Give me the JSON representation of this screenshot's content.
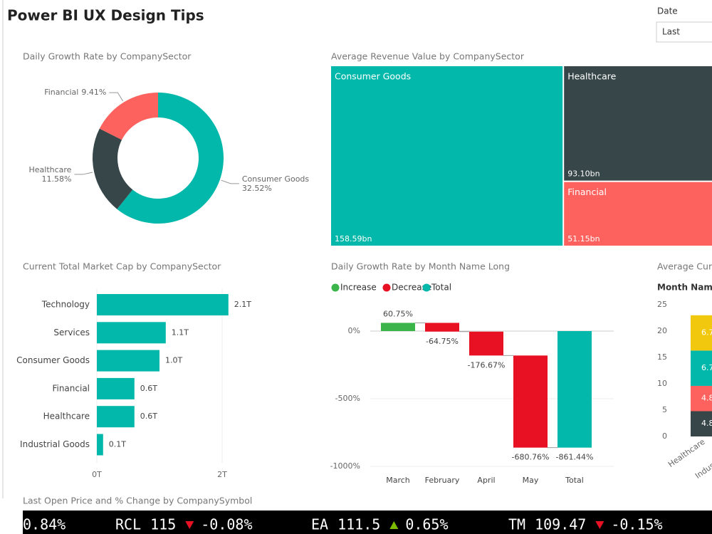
{
  "header": {
    "title": "Power BI UX Design Tips"
  },
  "slicer": {
    "label": "Date",
    "value": "Last"
  },
  "chart_data": [
    {
      "type": "pie",
      "title": "Daily Growth Rate by CompanySector",
      "hole": true,
      "categories": [
        "Consumer Goods",
        "Healthcare",
        "Financial"
      ],
      "values": [
        32.52,
        11.58,
        9.41
      ],
      "value_labels": [
        "32.52%",
        "11.58%",
        "9.41%"
      ],
      "colors": [
        "#01b8aa",
        "#374649",
        "#fd625e"
      ]
    },
    {
      "type": "treemap",
      "title": "Average Revenue Value by CompanySector",
      "categories": [
        "Consumer Goods",
        "Healthcare",
        "Financial"
      ],
      "values": [
        158.59,
        93.1,
        51.15
      ],
      "value_labels": [
        "158.59bn",
        "93.10bn",
        "51.15bn"
      ],
      "colors": [
        "#01b8aa",
        "#374649",
        "#fd625e"
      ]
    },
    {
      "type": "bar",
      "orientation": "horizontal",
      "title": "Current Total Market Cap by CompanySector",
      "categories": [
        "Technology",
        "Services",
        "Consumer Goods",
        "Financial",
        "Healthcare",
        "Industrial Goods"
      ],
      "values": [
        2.1,
        1.1,
        1.0,
        0.6,
        0.6,
        0.1
      ],
      "value_labels": [
        "2.1T",
        "1.1T",
        "1.0T",
        "0.6T",
        "0.6T",
        "0.1T"
      ],
      "color": "#01b8aa",
      "xlim": [
        0,
        2.5
      ],
      "xticks": [
        {
          "value": 0,
          "label": "0T"
        },
        {
          "value": 2,
          "label": "2T"
        }
      ],
      "grid": true
    },
    {
      "type": "waterfall",
      "title": "Daily Growth Rate by Month Name Long",
      "legend": [
        {
          "name": "Increase",
          "color": "#3bb44a"
        },
        {
          "name": "Decrease",
          "color": "#e81123"
        },
        {
          "name": "Total",
          "color": "#01b8aa"
        }
      ],
      "categories": [
        "March",
        "February",
        "April",
        "May",
        "Total"
      ],
      "values": [
        60.75,
        -64.75,
        -176.67,
        -680.76,
        -861.44
      ],
      "value_labels": [
        "60.75%",
        "-64.75%",
        "-176.67%",
        "-680.76%",
        "-861.44%"
      ],
      "ylim": [
        -1000,
        100
      ],
      "yticks": [
        {
          "value": 0,
          "label": "0%"
        },
        {
          "value": -500,
          "label": "-500%"
        },
        {
          "value": -1000,
          "label": "-1000%"
        }
      ],
      "grid": true
    },
    {
      "type": "bar",
      "stacked": true,
      "title": "Average Curr",
      "legend_title": "Month Name L",
      "categories": [
        "Healthcare",
        "Indus"
      ],
      "series": [
        {
          "color": "#374649",
          "values": [
            4.8,
            null
          ]
        },
        {
          "color": "#fd625e",
          "values": [
            4.8,
            null
          ]
        },
        {
          "color": "#01b8aa",
          "values": [
            6.7,
            null
          ]
        },
        {
          "color": "#f2c80f",
          "values": [
            6.7,
            null
          ]
        }
      ],
      "ylim": [
        0,
        25
      ],
      "yticks": [
        0,
        5,
        10,
        15,
        20,
        25
      ]
    }
  ],
  "ticker": {
    "title": "Last Open Price and % Change by CompanySymbol",
    "items": [
      {
        "change": "0.84%"
      },
      {
        "symbol": "RCL",
        "price": "115",
        "change": "-0.08%"
      },
      {
        "symbol": "EA",
        "price": "111.5",
        "change": "0.65%"
      },
      {
        "symbol": "TM",
        "price": "109.47",
        "change": "-0.15%"
      }
    ]
  }
}
